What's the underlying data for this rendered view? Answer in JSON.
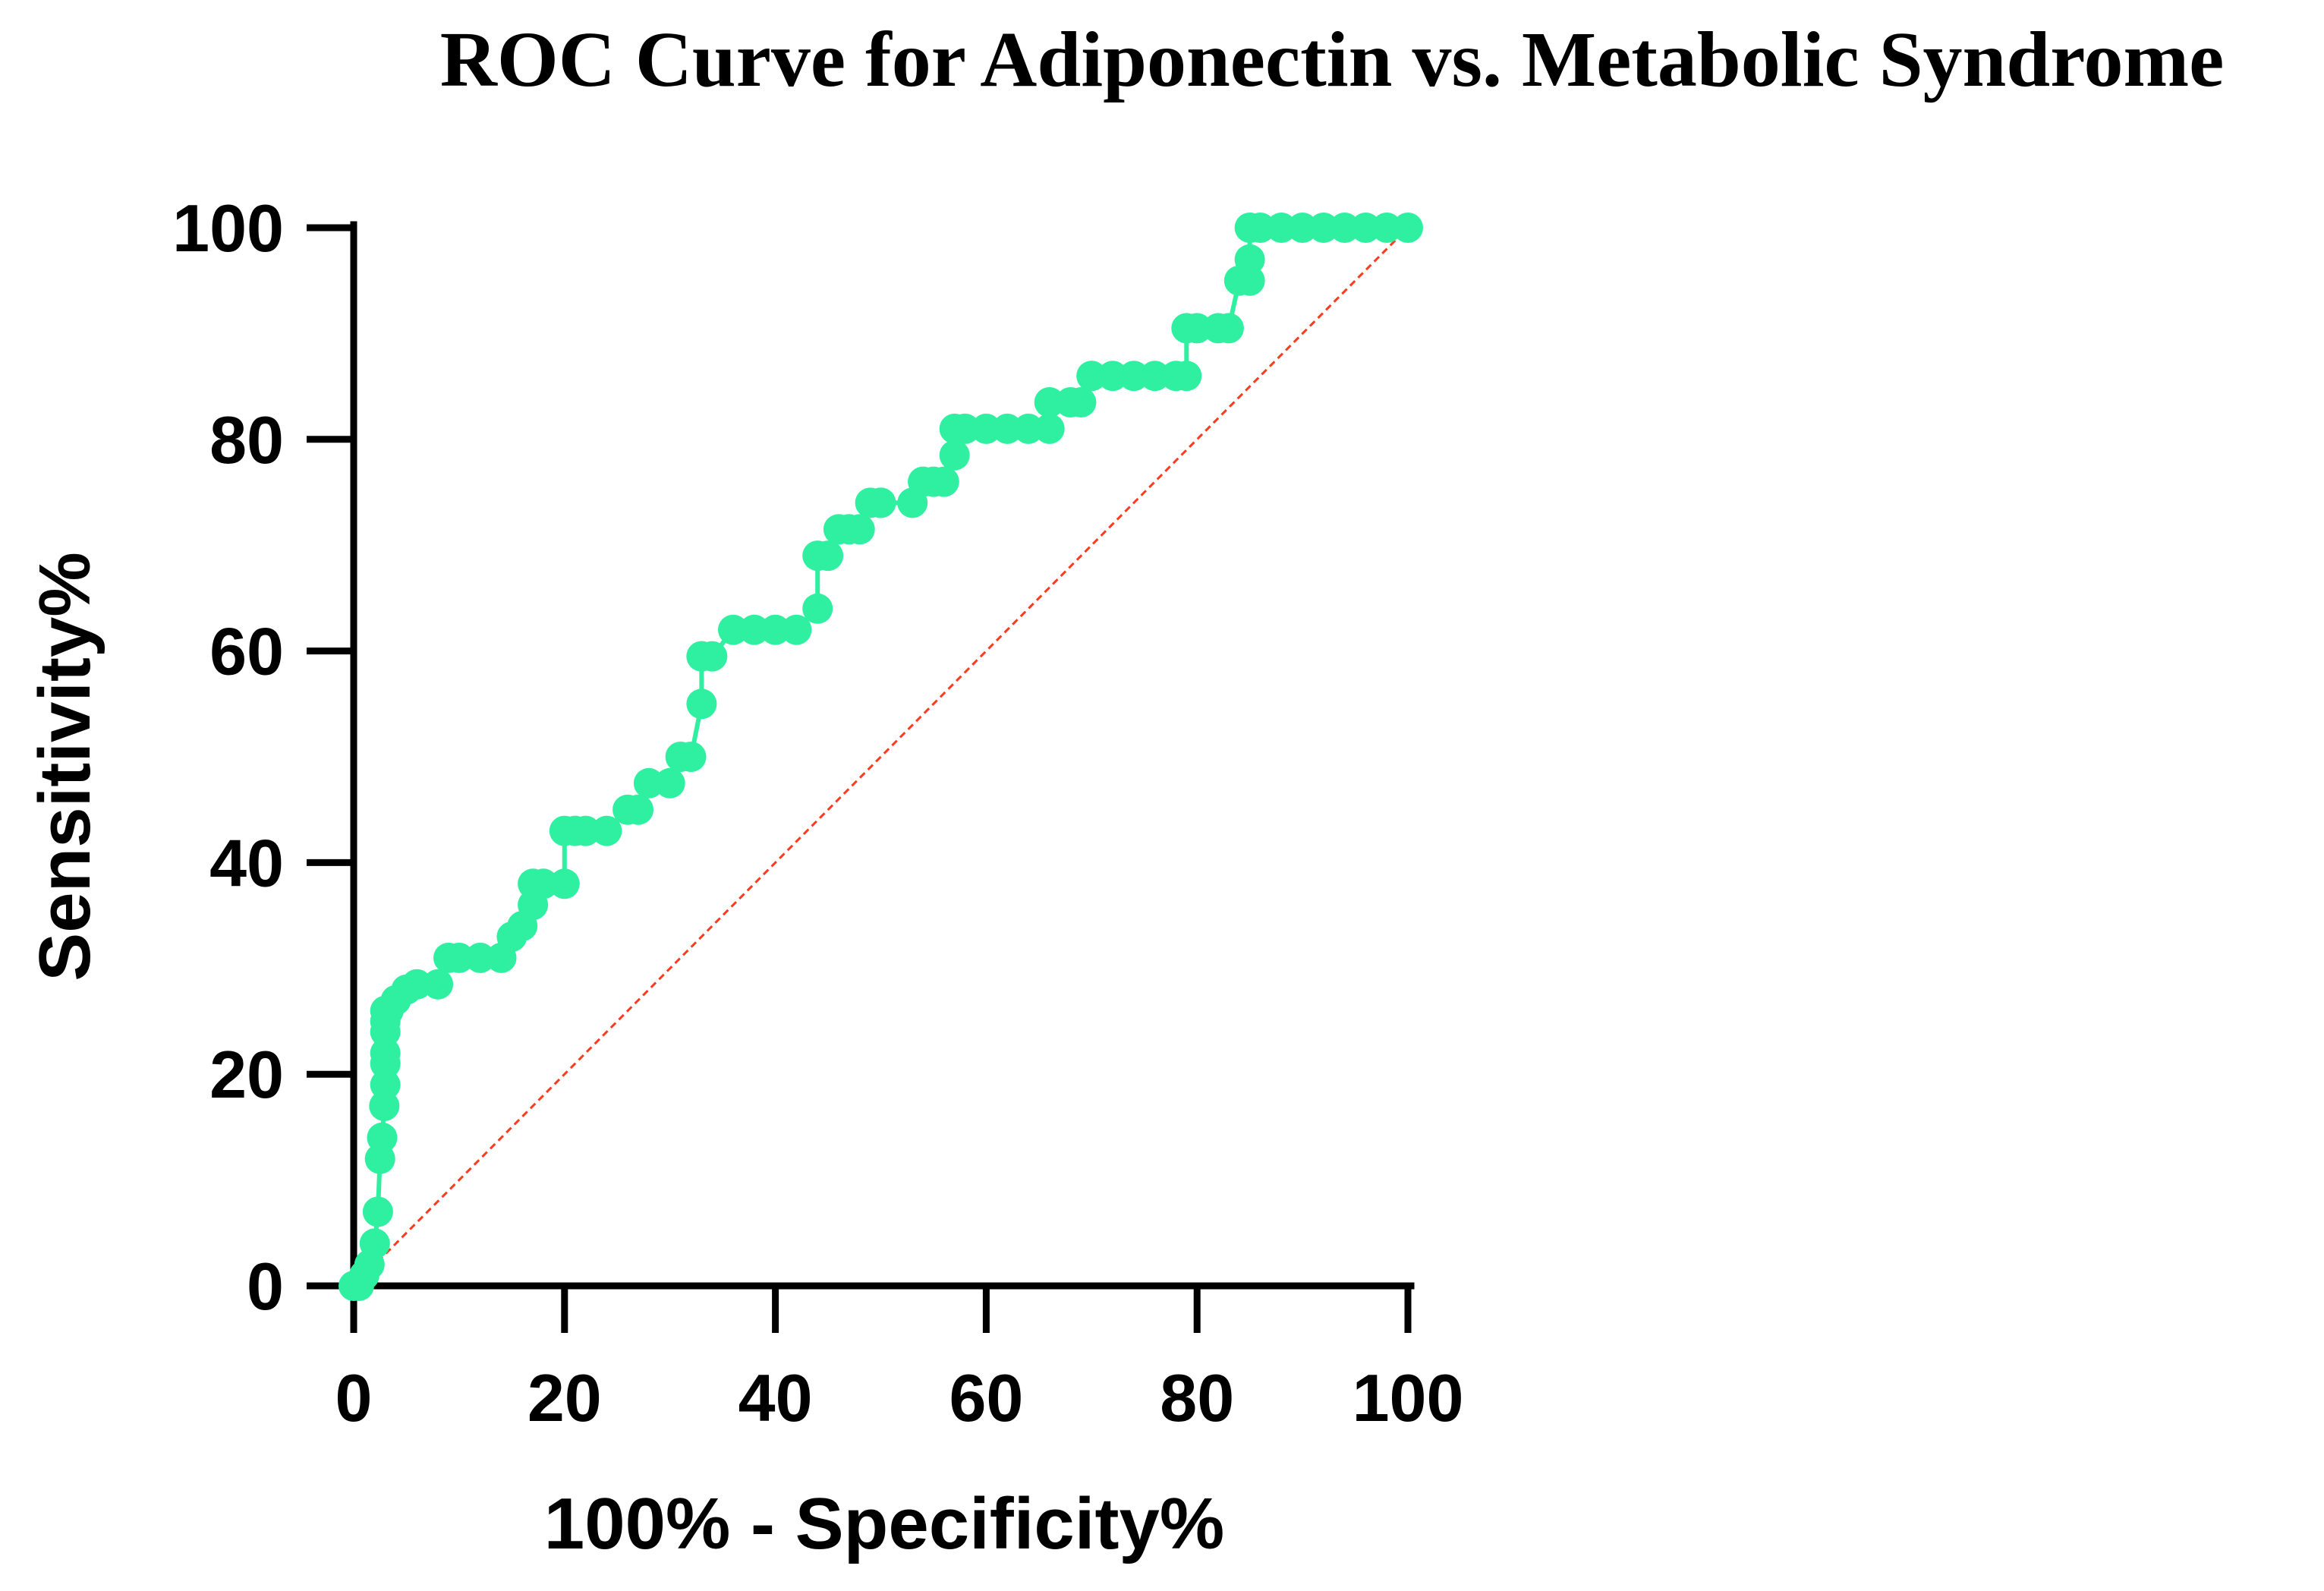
{
  "chart_data": {
    "type": "line",
    "title": "ROC Curve for Adiponectin vs. Metabolic Syndrome",
    "xlabel": "100% - Specificity%",
    "ylabel": "Sensitivity%",
    "xlim": [
      0,
      100
    ],
    "ylim": [
      0,
      100
    ],
    "xticks": [
      "0",
      "20",
      "40",
      "60",
      "80",
      "100"
    ],
    "yticks": [
      "0",
      "20",
      "40",
      "60",
      "80",
      "100"
    ],
    "grid": false,
    "legend": "none",
    "colors": {
      "curve": "#2ef0a0",
      "reference": "#ff3b1f",
      "axis": "#000000"
    },
    "series": [
      {
        "name": "ROC curve",
        "style": "line-with-markers",
        "x": [
          0,
          0.5,
          1,
          1.5,
          2,
          2.3,
          2.5,
          2.7,
          2.9,
          3.0,
          3.0,
          3.0,
          3.0,
          3.0,
          3.0,
          3.3,
          4,
          5,
          6,
          8,
          9,
          10,
          12,
          14,
          15,
          16,
          17,
          17,
          18,
          20,
          20,
          21,
          22,
          24,
          26,
          27,
          28,
          30,
          31,
          32,
          33,
          33,
          33,
          34,
          36,
          38,
          40,
          42,
          44,
          44,
          45,
          46,
          47,
          48,
          49,
          50,
          50,
          53,
          54,
          55,
          56,
          57,
          57,
          58,
          60,
          62,
          64,
          66,
          66,
          68,
          69,
          70,
          70,
          72,
          74,
          76,
          78,
          79,
          79,
          80,
          82,
          83,
          84,
          85,
          85,
          85,
          86,
          88,
          90,
          92,
          94,
          96,
          98,
          100
        ],
        "y": [
          0,
          0,
          1,
          2,
          4,
          7,
          12,
          14,
          17,
          19,
          21,
          22,
          24,
          25,
          26,
          26,
          27,
          28,
          28.5,
          28.5,
          31,
          31,
          31,
          31,
          33,
          34,
          36,
          38,
          38,
          38,
          43,
          43,
          43,
          43,
          45,
          45,
          47.5,
          47.5,
          50,
          50,
          55,
          59.5,
          59.5,
          59.5,
          62,
          62,
          62,
          62,
          64,
          69,
          69,
          71.5,
          71.5,
          71.5,
          74,
          74,
          74,
          74,
          76,
          76,
          76,
          78.5,
          81,
          81,
          81,
          81,
          81,
          81,
          83.5,
          83.5,
          83.5,
          86,
          86,
          86,
          86,
          86,
          86,
          86,
          90.5,
          90.5,
          90.5,
          90.5,
          95,
          95,
          97,
          100,
          100,
          100,
          100,
          100,
          100,
          100,
          100,
          100
        ]
      },
      {
        "name": "Reference line",
        "style": "dashed",
        "x": [
          0,
          100
        ],
        "y": [
          0,
          100
        ]
      }
    ]
  }
}
